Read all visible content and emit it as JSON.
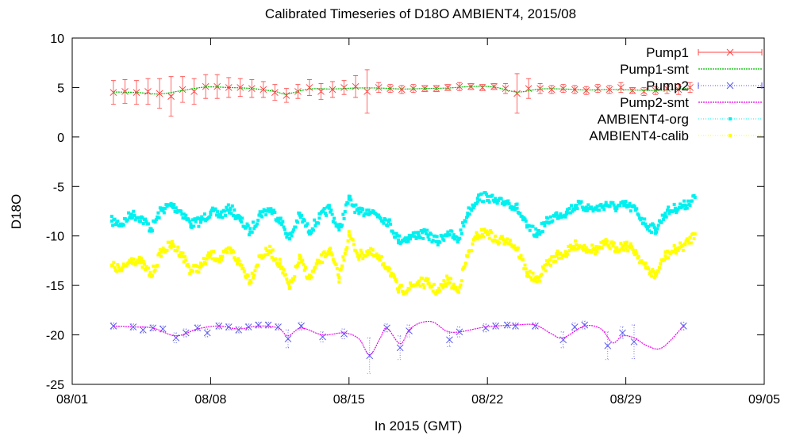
{
  "chart_data": {
    "type": "scatter",
    "title": "Calibrated Timeseries of D18O AMBIENT4, 2015/08",
    "xlabel": "In 2015 (GMT)",
    "ylabel": "D18O",
    "xlim": [
      "2015-08-01",
      "2015-09-05"
    ],
    "ylim": [
      -25,
      10
    ],
    "grid": false,
    "legend_position": "top-right",
    "x_ticks": [
      {
        "x": "2015-08-01",
        "label": "08/01"
      },
      {
        "x": "2015-08-08",
        "label": "08/08"
      },
      {
        "x": "2015-08-15",
        "label": "08/15"
      },
      {
        "x": "2015-08-22",
        "label": "08/22"
      },
      {
        "x": "2015-08-29",
        "label": "08/29"
      },
      {
        "x": "2015-09-05",
        "label": "09/05"
      }
    ],
    "y_ticks": [
      10,
      5,
      0,
      -5,
      -10,
      -15,
      -20,
      -25
    ],
    "series": [
      {
        "name": "Pump1",
        "style": "points-errorbars",
        "color": "#ff4444",
        "x": [
          "2015-08-03 02:00",
          "2015-08-03 16:00",
          "2015-08-04 06:00",
          "2015-08-04 20:00",
          "2015-08-05 10:00",
          "2015-08-06 00:00",
          "2015-08-06 14:00",
          "2015-08-07 04:00",
          "2015-08-07 18:00",
          "2015-08-08 08:00",
          "2015-08-08 22:00",
          "2015-08-09 12:00",
          "2015-08-10 02:00",
          "2015-08-10 16:00",
          "2015-08-11 06:00",
          "2015-08-11 20:00",
          "2015-08-12 10:00",
          "2015-08-13 00:00",
          "2015-08-13 14:00",
          "2015-08-14 04:00",
          "2015-08-14 18:00",
          "2015-08-15 08:00",
          "2015-08-15 22:00",
          "2015-08-16 12:00",
          "2015-08-17 02:00",
          "2015-08-17 16:00",
          "2015-08-18 06:00",
          "2015-08-18 20:00",
          "2015-08-19 10:00",
          "2015-08-20 00:00",
          "2015-08-20 14:00",
          "2015-08-21 04:00",
          "2015-08-21 18:00",
          "2015-08-22 08:00",
          "2015-08-22 22:00",
          "2015-08-23 12:00",
          "2015-08-24 02:00",
          "2015-08-24 16:00",
          "2015-08-25 06:00",
          "2015-08-25 20:00",
          "2015-08-26 10:00",
          "2015-08-27 00:00",
          "2015-08-27 14:00",
          "2015-08-28 04:00",
          "2015-08-28 18:00",
          "2015-08-29 08:00",
          "2015-08-29 22:00",
          "2015-08-30 12:00",
          "2015-08-31 02:00",
          "2015-08-31 16:00",
          "2015-09-01 06:00"
        ],
        "y": [
          4.5,
          4.6,
          4.5,
          4.6,
          4.4,
          4.1,
          4.8,
          4.6,
          5.1,
          5.1,
          5.0,
          5.0,
          4.9,
          4.8,
          4.5,
          4.2,
          4.6,
          5.0,
          4.6,
          4.8,
          5.0,
          5.1,
          4.6,
          5.0,
          4.9,
          4.8,
          4.9,
          4.9,
          4.9,
          5.0,
          5.1,
          5.1,
          5.0,
          5.1,
          4.9,
          4.4,
          4.9,
          4.9,
          4.8,
          4.9,
          4.8,
          4.7,
          4.9,
          4.8,
          5.0,
          4.7,
          4.6,
          4.7,
          4.9,
          4.8,
          5.0
        ],
        "err": [
          1.2,
          1.2,
          1.2,
          1.3,
          1.5,
          2.0,
          1.3,
          1.3,
          1.2,
          1.2,
          1.0,
          0.9,
          0.9,
          0.8,
          0.8,
          0.7,
          0.7,
          0.8,
          0.8,
          0.8,
          0.7,
          1.1,
          2.2,
          0.5,
          0.4,
          0.4,
          0.4,
          0.3,
          0.3,
          0.3,
          0.4,
          0.3,
          0.3,
          0.3,
          0.5,
          2.0,
          1.0,
          0.5,
          0.4,
          0.4,
          0.4,
          0.4,
          0.4,
          0.4,
          0.5,
          0.3,
          0.4,
          0.4,
          0.5,
          0.5,
          0.5
        ]
      },
      {
        "name": "Pump1-smt",
        "style": "line",
        "color": "#00bb00",
        "x": [
          "2015-08-03 02:00",
          "2015-08-04 06:00",
          "2015-08-05 10:00",
          "2015-08-06 14:00",
          "2015-08-07 18:00",
          "2015-08-08 22:00",
          "2015-08-10 02:00",
          "2015-08-11 06:00",
          "2015-08-11 20:00",
          "2015-08-13 00:00",
          "2015-08-14 04:00",
          "2015-08-15 08:00",
          "2015-08-16 12:00",
          "2015-08-17 16:00",
          "2015-08-18 20:00",
          "2015-08-20 00:00",
          "2015-08-21 04:00",
          "2015-08-22 08:00",
          "2015-08-23 12:00",
          "2015-08-24 16:00",
          "2015-08-25 20:00",
          "2015-08-27 00:00",
          "2015-08-28 04:00",
          "2015-08-29 08:00",
          "2015-08-30 12:00",
          "2015-08-31 16:00",
          "2015-09-01 06:00"
        ],
        "y": [
          4.55,
          4.5,
          4.35,
          4.7,
          5.05,
          5.0,
          4.9,
          4.6,
          4.35,
          4.85,
          4.85,
          4.95,
          4.95,
          4.85,
          4.9,
          4.95,
          5.1,
          5.05,
          4.55,
          4.85,
          4.85,
          4.75,
          4.8,
          4.75,
          4.7,
          4.85,
          4.95
        ]
      },
      {
        "name": "Pump2",
        "style": "points-errorbars",
        "color": "#5555ee",
        "x": [
          "2015-08-03 02:00",
          "2015-08-04 02:00",
          "2015-08-04 14:00",
          "2015-08-05 02:00",
          "2015-08-05 14:00",
          "2015-08-06 06:00",
          "2015-08-06 18:00",
          "2015-08-07 08:00",
          "2015-08-07 20:00",
          "2015-08-08 10:00",
          "2015-08-08 22:00",
          "2015-08-09 10:00",
          "2015-08-09 22:00",
          "2015-08-10 10:00",
          "2015-08-10 22:00",
          "2015-08-11 10:00",
          "2015-08-11 22:00",
          "2015-08-12 14:00",
          "2015-08-13 16:00",
          "2015-08-14 18:00",
          "2015-08-16 01:00",
          "2015-08-16 22:00",
          "2015-08-17 14:00",
          "2015-08-18 01:00",
          "2015-08-20 02:00",
          "2015-08-20 14:00",
          "2015-08-21 22:00",
          "2015-08-22 10:00",
          "2015-08-23 00:00",
          "2015-08-23 10:00",
          "2015-08-24 10:00",
          "2015-08-25 20:00",
          "2015-08-26 10:00",
          "2015-08-26 22:00",
          "2015-08-28 02:00",
          "2015-08-28 20:00",
          "2015-08-29 10:00",
          "2015-08-31 22:00"
        ],
        "y": [
          -19.1,
          -19.2,
          -19.5,
          -19.3,
          -19.4,
          -20.3,
          -19.8,
          -19.3,
          -19.8,
          -19.1,
          -19.2,
          -19.5,
          -19.2,
          -19.0,
          -19.0,
          -19.2,
          -20.4,
          -19.1,
          -20.2,
          -19.9,
          -22.1,
          -19.3,
          -21.3,
          -19.6,
          -20.5,
          -19.7,
          -19.3,
          -19.1,
          -19.0,
          -19.1,
          -19.1,
          -20.5,
          -19.2,
          -19.0,
          -21.1,
          -19.8,
          -20.7,
          -19.1
        ],
        "err": [
          0.3,
          0.3,
          0.3,
          0.3,
          0.3,
          0.5,
          0.4,
          0.3,
          0.4,
          0.3,
          0.3,
          0.3,
          0.3,
          0.3,
          0.3,
          0.3,
          0.9,
          0.4,
          0.5,
          0.5,
          1.8,
          0.4,
          1.2,
          0.6,
          0.7,
          0.5,
          0.4,
          0.3,
          0.3,
          0.3,
          0.3,
          0.8,
          0.4,
          0.4,
          1.4,
          0.6,
          1.7,
          0.4
        ]
      },
      {
        "name": "Pump2-smt",
        "style": "line",
        "color": "#ee00ee",
        "x": [
          "2015-08-03 02:00",
          "2015-08-04 02:00",
          "2015-08-05 02:00",
          "2015-08-06 06:00",
          "2015-08-07 08:00",
          "2015-08-08 10:00",
          "2015-08-09 10:00",
          "2015-08-10 10:00",
          "2015-08-11 10:00",
          "2015-08-11 22:00",
          "2015-08-12 14:00",
          "2015-08-13 16:00",
          "2015-08-14 18:00",
          "2015-08-15 12:00",
          "2015-08-16 01:00",
          "2015-08-16 14:00",
          "2015-08-16 22:00",
          "2015-08-17 14:00",
          "2015-08-18 01:00",
          "2015-08-18 14:00",
          "2015-08-19 06:00",
          "2015-08-19 22:00",
          "2015-08-20 14:00",
          "2015-08-21 22:00",
          "2015-08-23 10:00",
          "2015-08-24 10:00",
          "2015-08-25 06:00",
          "2015-08-25 20:00",
          "2015-08-26 22:00",
          "2015-08-27 18:00",
          "2015-08-28 08:00",
          "2015-08-28 20:00",
          "2015-08-29 10:00",
          "2015-08-30 02:00",
          "2015-08-30 20:00",
          "2015-08-31 22:00"
        ],
        "y": [
          -19.1,
          -19.2,
          -19.3,
          -20.1,
          -19.4,
          -19.1,
          -19.4,
          -19.1,
          -19.3,
          -20.1,
          -19.3,
          -20.0,
          -19.8,
          -20.4,
          -22.0,
          -20.3,
          -19.3,
          -20.9,
          -19.5,
          -18.8,
          -18.7,
          -19.6,
          -19.7,
          -19.2,
          -19.0,
          -19.0,
          -19.9,
          -20.3,
          -19.1,
          -19.4,
          -20.8,
          -20.1,
          -20.3,
          -21.1,
          -21.3,
          -19.1
        ]
      },
      {
        "name": "AMBIENT4-org",
        "style": "dots",
        "color": "#00f0f0",
        "x": [
          "2015-08-03 00:00",
          "2015-08-03 12:00",
          "2015-08-04 00:00",
          "2015-08-04 12:00",
          "2015-08-05 00:00",
          "2015-08-05 12:00",
          "2015-08-06 00:00",
          "2015-08-06 12:00",
          "2015-08-07 00:00",
          "2015-08-07 12:00",
          "2015-08-08 00:00",
          "2015-08-08 12:00",
          "2015-08-09 00:00",
          "2015-08-09 12:00",
          "2015-08-10 00:00",
          "2015-08-10 12:00",
          "2015-08-11 00:00",
          "2015-08-11 12:00",
          "2015-08-12 00:00",
          "2015-08-12 12:00",
          "2015-08-13 00:00",
          "2015-08-13 12:00",
          "2015-08-14 00:00",
          "2015-08-14 12:00",
          "2015-08-15 00:00",
          "2015-08-15 12:00",
          "2015-08-16 00:00",
          "2015-08-16 12:00",
          "2015-08-17 00:00",
          "2015-08-17 12:00",
          "2015-08-18 00:00",
          "2015-08-18 12:00",
          "2015-08-19 00:00",
          "2015-08-19 12:00",
          "2015-08-20 00:00",
          "2015-08-20 12:00",
          "2015-08-21 00:00",
          "2015-08-21 12:00",
          "2015-08-22 00:00",
          "2015-08-22 12:00",
          "2015-08-23 00:00",
          "2015-08-23 12:00",
          "2015-08-24 00:00",
          "2015-08-24 12:00",
          "2015-08-25 00:00",
          "2015-08-25 12:00",
          "2015-08-26 00:00",
          "2015-08-26 12:00",
          "2015-08-27 00:00",
          "2015-08-27 12:00",
          "2015-08-28 00:00",
          "2015-08-28 12:00",
          "2015-08-29 00:00",
          "2015-08-29 12:00",
          "2015-08-30 00:00",
          "2015-08-30 12:00",
          "2015-08-31 00:00",
          "2015-08-31 12:00",
          "2015-09-01 00:00",
          "2015-09-01 12:00"
        ],
        "y": [
          -8.5,
          -8.8,
          -7.8,
          -8.2,
          -9.3,
          -7.4,
          -6.9,
          -7.5,
          -8.8,
          -8.5,
          -7.6,
          -7.9,
          -7.2,
          -8.4,
          -9.6,
          -7.8,
          -7.3,
          -8.3,
          -10.3,
          -7.9,
          -9.5,
          -8.2,
          -7.2,
          -9.4,
          -6.3,
          -7.7,
          -7.4,
          -7.9,
          -8.6,
          -10.4,
          -10.2,
          -9.8,
          -9.9,
          -10.6,
          -9.6,
          -10.5,
          -7.7,
          -6.2,
          -6.0,
          -6.7,
          -6.5,
          -7.2,
          -9.1,
          -9.8,
          -8.6,
          -7.9,
          -7.6,
          -6.9,
          -7.1,
          -7.3,
          -6.8,
          -7.1,
          -6.9,
          -7.4,
          -8.8,
          -9.4,
          -7.7,
          -7.2,
          -6.9,
          -6.1
        ]
      },
      {
        "name": "AMBIENT4-calib",
        "style": "dots",
        "color": "#ffff00",
        "x": [
          "2015-08-03 00:00",
          "2015-08-03 12:00",
          "2015-08-04 00:00",
          "2015-08-04 12:00",
          "2015-08-05 00:00",
          "2015-08-05 12:00",
          "2015-08-06 00:00",
          "2015-08-06 12:00",
          "2015-08-07 00:00",
          "2015-08-07 12:00",
          "2015-08-08 00:00",
          "2015-08-08 12:00",
          "2015-08-09 00:00",
          "2015-08-09 12:00",
          "2015-08-10 00:00",
          "2015-08-10 12:00",
          "2015-08-11 00:00",
          "2015-08-11 12:00",
          "2015-08-12 00:00",
          "2015-08-12 12:00",
          "2015-08-13 00:00",
          "2015-08-13 12:00",
          "2015-08-14 00:00",
          "2015-08-14 12:00",
          "2015-08-15 00:00",
          "2015-08-15 12:00",
          "2015-08-16 00:00",
          "2015-08-16 12:00",
          "2015-08-17 00:00",
          "2015-08-17 12:00",
          "2015-08-18 00:00",
          "2015-08-18 12:00",
          "2015-08-19 00:00",
          "2015-08-19 12:00",
          "2015-08-20 00:00",
          "2015-08-20 12:00",
          "2015-08-21 00:00",
          "2015-08-21 12:00",
          "2015-08-22 00:00",
          "2015-08-22 12:00",
          "2015-08-23 00:00",
          "2015-08-23 12:00",
          "2015-08-24 00:00",
          "2015-08-24 12:00",
          "2015-08-25 00:00",
          "2015-08-25 12:00",
          "2015-08-26 00:00",
          "2015-08-26 12:00",
          "2015-08-27 00:00",
          "2015-08-27 12:00",
          "2015-08-28 00:00",
          "2015-08-28 12:00",
          "2015-08-29 00:00",
          "2015-08-29 12:00",
          "2015-08-30 00:00",
          "2015-08-30 12:00",
          "2015-08-31 00:00",
          "2015-08-31 12:00",
          "2015-09-01 00:00",
          "2015-09-01 12:00"
        ],
        "y": [
          -13.0,
          -13.5,
          -12.3,
          -12.7,
          -14.0,
          -11.6,
          -10.9,
          -11.7,
          -13.5,
          -13.1,
          -11.9,
          -12.3,
          -11.4,
          -12.9,
          -14.5,
          -12.1,
          -11.5,
          -12.8,
          -15.3,
          -12.3,
          -14.3,
          -12.6,
          -11.4,
          -14.2,
          -9.9,
          -12.0,
          -11.6,
          -12.3,
          -13.2,
          -15.5,
          -15.3,
          -14.7,
          -14.8,
          -15.7,
          -14.4,
          -15.6,
          -12.0,
          -9.9,
          -9.6,
          -10.6,
          -10.3,
          -11.3,
          -13.7,
          -14.6,
          -12.9,
          -12.0,
          -11.7,
          -10.9,
          -11.2,
          -11.4,
          -10.8,
          -11.2,
          -10.9,
          -11.6,
          -13.2,
          -14.0,
          -12.0,
          -11.4,
          -10.9,
          -9.8
        ]
      }
    ]
  }
}
